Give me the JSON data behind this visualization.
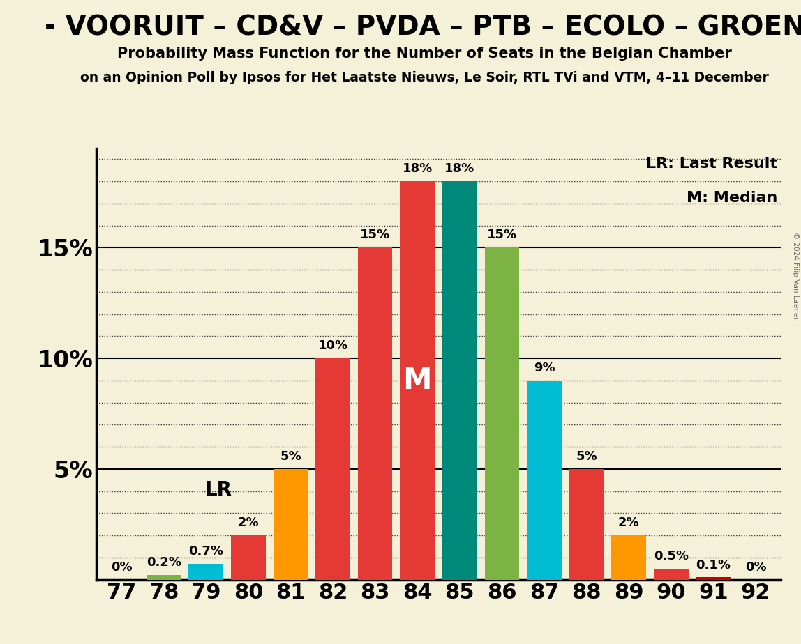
{
  "seats": [
    77,
    78,
    79,
    80,
    81,
    82,
    83,
    84,
    85,
    86,
    87,
    88,
    89,
    90,
    91,
    92
  ],
  "probabilities": [
    0.0,
    0.2,
    0.7,
    2.0,
    5.0,
    10.0,
    15.0,
    18.0,
    18.0,
    15.0,
    9.0,
    5.0,
    2.0,
    0.5,
    0.1,
    0.0
  ],
  "bar_colors": [
    "#cc0000",
    "#7cb342",
    "#00bcd4",
    "#e53935",
    "#ff9800",
    "#e53935",
    "#e53935",
    "#e53935",
    "#00897b",
    "#7cb342",
    "#00bcd4",
    "#e53935",
    "#ff9800",
    "#e53935",
    "#cc0000",
    "#cc0000"
  ],
  "label_texts": [
    "0%",
    "0.2%",
    "0.7%",
    "2%",
    "5%",
    "10%",
    "15%",
    "18%",
    "18%",
    "15%",
    "9%",
    "5%",
    "2%",
    "0.5%",
    "0.1%",
    "0%"
  ],
  "median_seat": 84,
  "lr_seat": 80,
  "title_line1": "- VOORUIT – CD&V – PVDA – PTB – ECOLO – GROEN",
  "title_line2": "Probability Mass Function for the Number of Seats in the Belgian Chamber",
  "title_line3": "on an Opinion Poll by Ipsos for Het Laatste Nieuws, Le Soir, RTL TVi and VTM, 4–11 December",
  "copyright_text": "© 2024 Filip Van Laenen",
  "legend_lr": "LR: Last Result",
  "legend_m": "M: Median",
  "background_color": "#f5f0d8",
  "ylim_max": 19.5,
  "ytick_values": [
    5,
    10,
    15
  ],
  "minor_ytick_values": [
    1,
    2,
    3,
    4,
    6,
    7,
    8,
    9,
    11,
    12,
    13,
    14,
    16,
    17,
    18,
    19
  ],
  "bar_width": 0.82
}
